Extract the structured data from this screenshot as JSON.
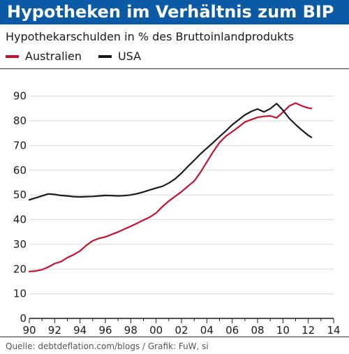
{
  "header": {
    "title": "Hypotheken im Verhältnis zum BIP",
    "subtitle": "Hypothekarschulden in % des Bruttoinlandprodukts"
  },
  "footer": {
    "source": "Quelle: debtdeflation.com/blogs / Grafik: FuW, si"
  },
  "colors": {
    "title_bar": "#0a5aa6",
    "australien": "#c8102e",
    "usa": "#1a1a1a",
    "grid": "#d7d7d7"
  },
  "chart_data": {
    "type": "line",
    "title": "Hypotheken im Verhältnis zum BIP",
    "subtitle": "Hypothekarschulden in % des Bruttoinlandprodukts",
    "xlabel": "",
    "ylabel": "",
    "xlim": [
      1990,
      2014
    ],
    "ylim": [
      0,
      95
    ],
    "xticks": [
      1990,
      1992,
      1994,
      1996,
      1998,
      2000,
      2002,
      2004,
      2006,
      2008,
      2010,
      2012,
      2014
    ],
    "xtick_labels": [
      "90",
      "92",
      "94",
      "96",
      "98",
      "00",
      "02",
      "04",
      "06",
      "08",
      "10",
      "12",
      "14"
    ],
    "yticks": [
      0,
      10,
      20,
      30,
      40,
      50,
      60,
      70,
      80,
      90
    ],
    "ytick_labels": [
      "0",
      "10",
      "20",
      "30",
      "40",
      "50",
      "60",
      "70",
      "80",
      "90"
    ],
    "grid": true,
    "legend": "top-left",
    "series": [
      {
        "name": "Australien",
        "color": "#c8102e",
        "x": [
          1990.0,
          1990.5,
          1991.0,
          1991.5,
          1992.0,
          1992.5,
          1993.0,
          1993.5,
          1994.0,
          1994.5,
          1995.0,
          1995.5,
          1996.0,
          1996.5,
          1997.0,
          1997.5,
          1998.0,
          1998.5,
          1999.0,
          1999.5,
          2000.0,
          2000.5,
          2001.0,
          2001.5,
          2002.0,
          2002.5,
          2003.0,
          2003.5,
          2004.0,
          2004.5,
          2005.0,
          2005.5,
          2006.0,
          2006.5,
          2007.0,
          2007.5,
          2008.0,
          2008.5,
          2009.0,
          2009.5,
          2010.0,
          2010.5,
          2011.0,
          2011.5,
          2012.0,
          2012.25
        ],
        "y": [
          19.0,
          19.2,
          19.7,
          20.8,
          22.2,
          23.0,
          24.6,
          25.8,
          27.3,
          29.6,
          31.4,
          32.4,
          33.0,
          34.0,
          35.0,
          36.2,
          37.3,
          38.5,
          39.8,
          41.0,
          42.7,
          45.3,
          47.5,
          49.4,
          51.3,
          53.5,
          55.6,
          59.2,
          63.3,
          67.5,
          71.2,
          73.8,
          75.6,
          77.5,
          79.5,
          80.5,
          81.4,
          81.8,
          82.0,
          81.2,
          83.5,
          86.0,
          87.2,
          86.0,
          85.2,
          85.0
        ]
      },
      {
        "name": "USA",
        "color": "#1a1a1a",
        "x": [
          1990.0,
          1990.5,
          1991.0,
          1991.5,
          1992.0,
          1992.5,
          1993.0,
          1993.5,
          1994.0,
          1994.5,
          1995.0,
          1995.5,
          1996.0,
          1996.5,
          1997.0,
          1997.5,
          1998.0,
          1998.5,
          1999.0,
          1999.5,
          2000.0,
          2000.5,
          2001.0,
          2001.5,
          2002.0,
          2002.5,
          2003.0,
          2003.5,
          2004.0,
          2004.5,
          2005.0,
          2005.5,
          2006.0,
          2006.5,
          2007.0,
          2007.5,
          2008.0,
          2008.5,
          2009.0,
          2009.5,
          2010.0,
          2010.5,
          2011.0,
          2011.5,
          2012.0,
          2012.25
        ],
        "y": [
          48.0,
          48.8,
          49.6,
          50.4,
          50.2,
          49.8,
          49.6,
          49.3,
          49.2,
          49.3,
          49.4,
          49.6,
          49.8,
          49.7,
          49.6,
          49.7,
          50.0,
          50.5,
          51.2,
          52.0,
          52.8,
          53.5,
          54.8,
          56.5,
          58.8,
          61.5,
          64.0,
          66.6,
          68.9,
          71.2,
          73.6,
          75.9,
          78.4,
          80.4,
          82.4,
          83.8,
          84.8,
          83.6,
          84.9,
          87.0,
          84.3,
          81.0,
          78.5,
          76.2,
          74.1,
          73.3
        ]
      }
    ]
  }
}
